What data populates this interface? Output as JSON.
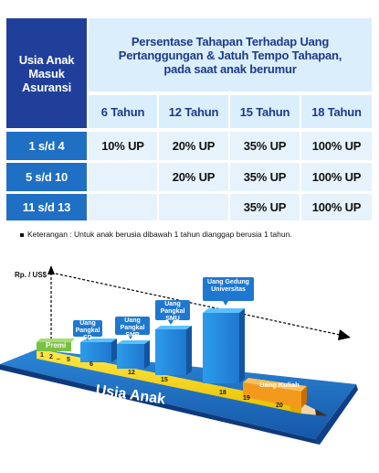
{
  "table": {
    "corner_header": "Usia Anak Masuk Asuransi",
    "main_header": "Persentase Tahapan Terhadap Uang Pertanggungan & Jatuh Tempo Tahapan, pada saat anak berumur",
    "age_columns": [
      "6 Tahun",
      "12 Tahun",
      "15 Tahun",
      "18 Tahun"
    ],
    "rows": [
      {
        "label": "1 s/d 4",
        "cells": [
          "10% UP",
          "20% UP",
          "35% UP",
          "100% UP"
        ]
      },
      {
        "label": "5 s/d 10",
        "cells": [
          "",
          "20% UP",
          "35% UP",
          "100% UP"
        ]
      },
      {
        "label": "11 s/d 13",
        "cells": [
          "",
          "",
          "35% UP",
          "100% UP"
        ]
      }
    ]
  },
  "note": "Keterangan : Untuk anak berusia dibawah 1 tahun dianggap berusia 1 tahun.",
  "illustration": {
    "y_axis_label": "Rp. / US$",
    "axis_title": "Usia Anak",
    "promo_label": "Premi",
    "buildings": [
      {
        "label": "Uang Pangkal SD"
      },
      {
        "label": "Uang Pangkal SMP"
      },
      {
        "label": "Uang Pangkal SMU"
      },
      {
        "label": "Uang Gedung Universitas"
      }
    ],
    "kuliah_label": "Uang Kuliah",
    "ticks": [
      "1",
      "2",
      "..",
      "5",
      "6",
      "12",
      "15",
      "18",
      "19",
      "20"
    ],
    "colors": {
      "table_dark": "#1f3f9a",
      "table_mid": "#1f6fc4",
      "table_light": "#dbeefb",
      "building_blue": "#1f8fe0",
      "floor_blue": "#1e73c8",
      "ruler_yellow": "#f4d400",
      "orange": "#f39a1c",
      "green": "#7cc242"
    }
  }
}
